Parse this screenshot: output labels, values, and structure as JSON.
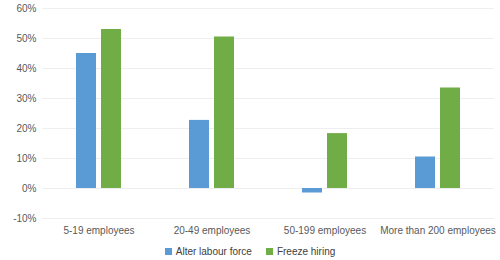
{
  "chart_data": {
    "type": "bar",
    "categories": [
      "5-19 employees",
      "20-49 employees",
      "50-199 employees",
      "More than 200 employees"
    ],
    "series": [
      {
        "name": "Alter labour force",
        "color": "#5b9bd5",
        "values": [
          45,
          22.7,
          -1.5,
          10.5
        ]
      },
      {
        "name": "Freeze hiring",
        "color": "#70ad47",
        "values": [
          53,
          50.5,
          18.3,
          33.5
        ]
      }
    ],
    "ylim": [
      -10,
      60
    ],
    "yticks": [
      {
        "value": -10,
        "label": "-10%"
      },
      {
        "value": 0,
        "label": "0%"
      },
      {
        "value": 10,
        "label": "10%"
      },
      {
        "value": 20,
        "label": "20%"
      },
      {
        "value": 30,
        "label": "30%"
      },
      {
        "value": 40,
        "label": "40%"
      },
      {
        "value": 50,
        "label": "50%"
      },
      {
        "value": 60,
        "label": "60%"
      }
    ],
    "grid": true,
    "legend": "bottom"
  }
}
